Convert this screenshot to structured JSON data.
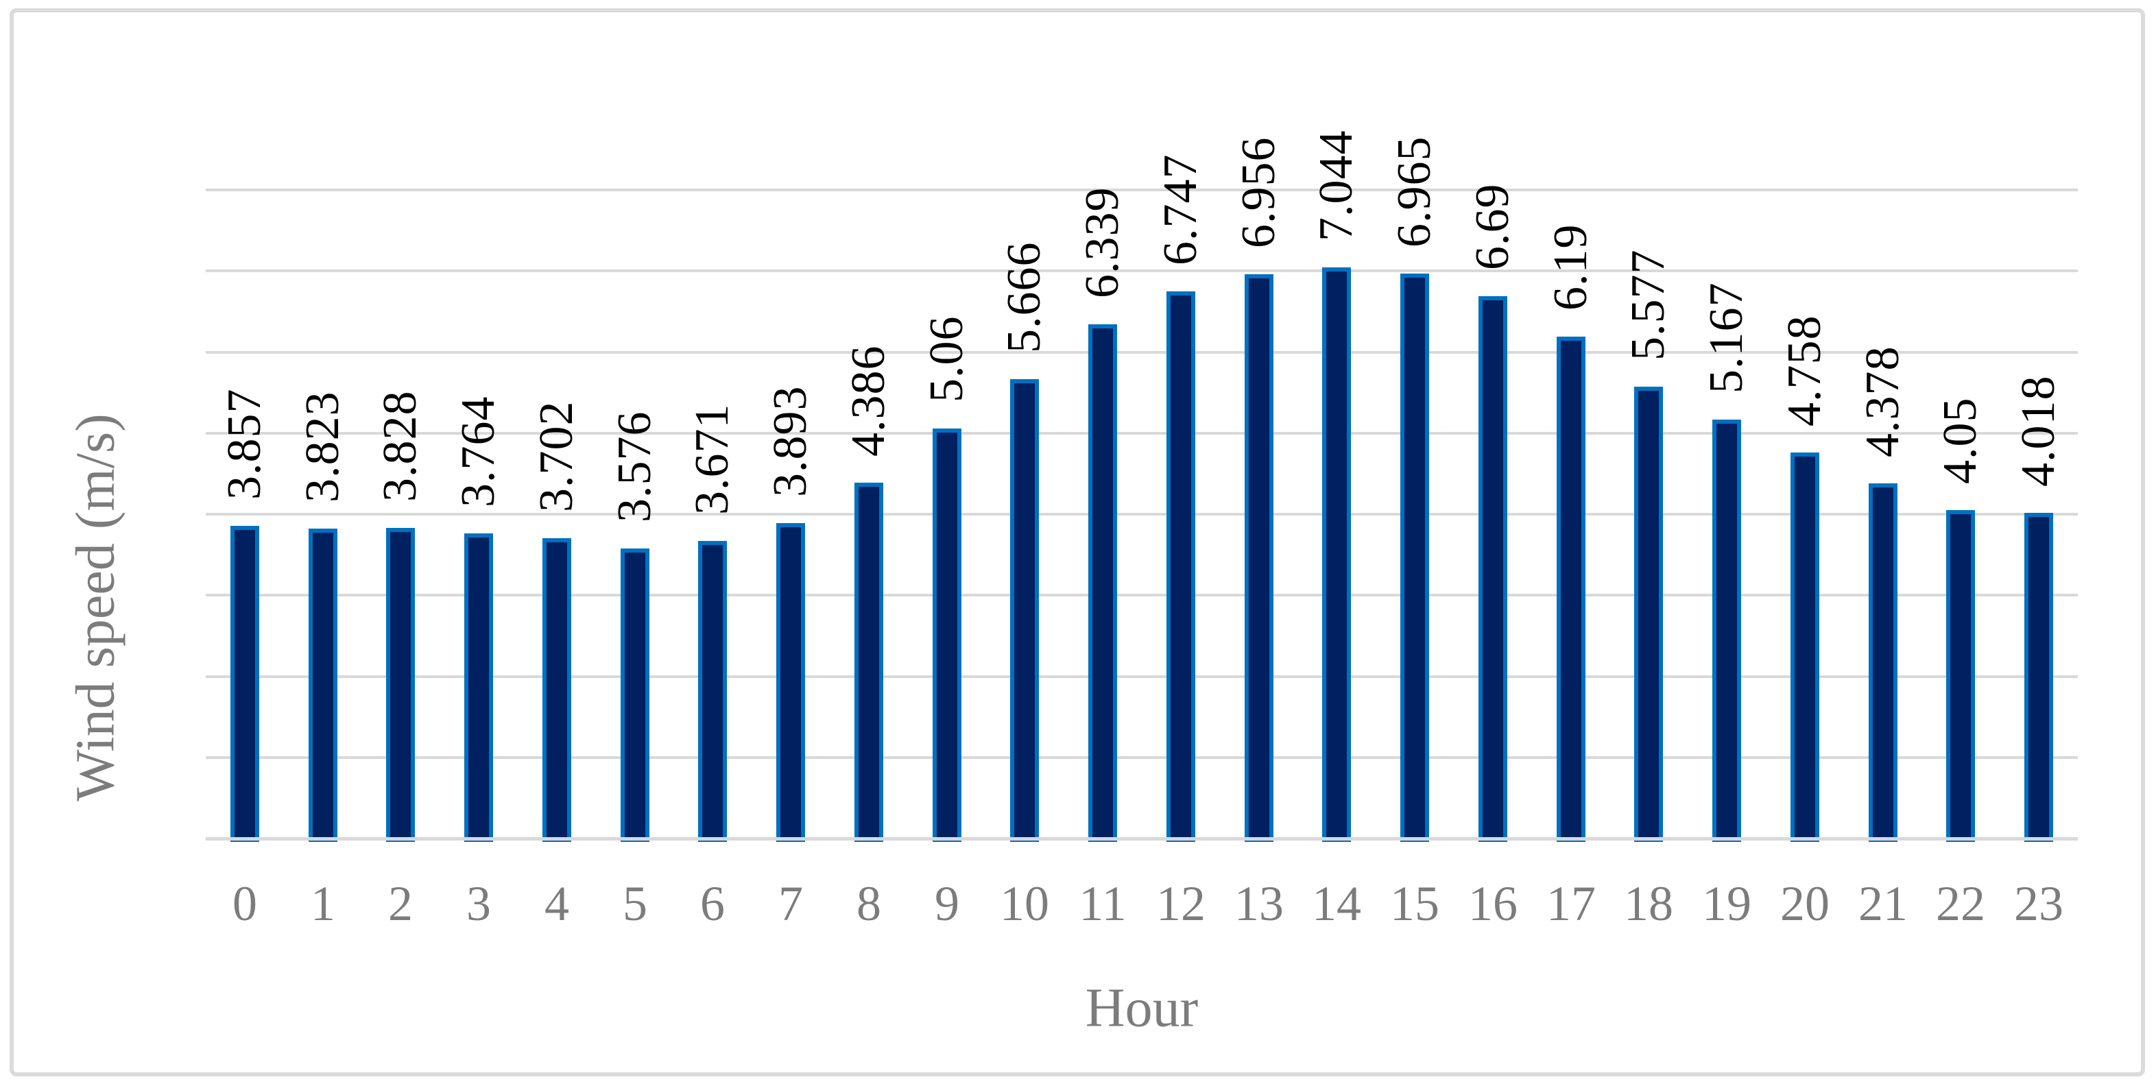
{
  "figure": {
    "kind": "excel-style column chart figure"
  },
  "chart_data": {
    "type": "bar",
    "title": "",
    "xlabel": "Hour",
    "ylabel": "Wind speed (m/s)",
    "categories": [
      "0",
      "1",
      "2",
      "3",
      "4",
      "5",
      "6",
      "7",
      "8",
      "9",
      "10",
      "11",
      "12",
      "13",
      "14",
      "15",
      "16",
      "17",
      "18",
      "19",
      "20",
      "21",
      "22",
      "23"
    ],
    "values": [
      3.857,
      3.823,
      3.828,
      3.764,
      3.702,
      3.576,
      3.671,
      3.893,
      4.386,
      5.06,
      5.666,
      6.339,
      6.747,
      6.956,
      7.044,
      6.965,
      6.69,
      6.19,
      5.577,
      5.167,
      4.758,
      4.378,
      4.05,
      4.018
    ],
    "data_labels": [
      "3.857",
      "3.823",
      "3.828",
      "3.764",
      "3.702",
      "3.576",
      "3.671",
      "3.893",
      "4.386",
      "5.06",
      "5.666",
      "6.339",
      "6.747",
      "6.956",
      "7.044",
      "6.965",
      "6.69",
      "6.19",
      "5.577",
      "5.167",
      "4.758",
      "4.378",
      "4.05",
      "4.018"
    ],
    "ylim": [
      0,
      8
    ],
    "gridline_step": 1,
    "grid": true,
    "legend_position": "none",
    "colors": {
      "bar_fill": "#002060",
      "bar_border": "#0070c0",
      "gridline": "#d9d9d9",
      "axis_text": "#7c7c7c",
      "data_label_text": "#000000",
      "frame_border": "#dbdbdb"
    }
  }
}
